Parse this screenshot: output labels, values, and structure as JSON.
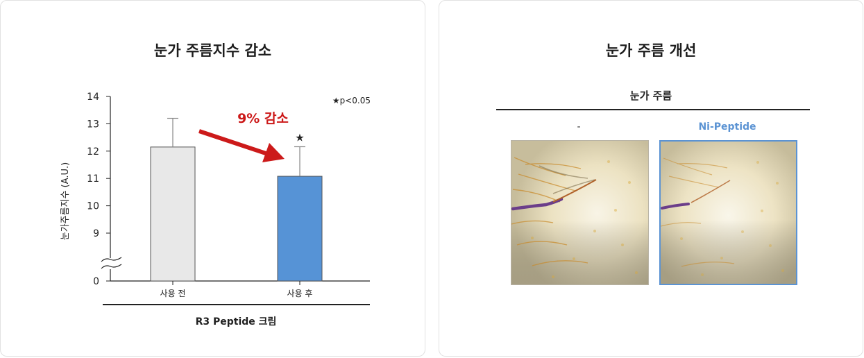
{
  "left_panel": {
    "title": "눈가 주름지수 감소",
    "footer_label": "R3 Peptide 크림"
  },
  "right_panel": {
    "title": "눈가 주름 개선",
    "group_header": "눈가 주름",
    "columns": [
      {
        "label": "-",
        "color": "#333333"
      },
      {
        "label": "Ni-Peptide",
        "color": "#5b93d3"
      }
    ]
  },
  "chart_data": {
    "type": "bar",
    "title": "눈가 주름지수 감소",
    "categories": [
      "사용 전",
      "사용 후"
    ],
    "values": [
      12.15,
      11.08
    ],
    "errors": [
      1.05,
      1.08
    ],
    "bar_colors": [
      "#e8e8e8",
      "#5693d6"
    ],
    "ylabel": "눈가주름지수 (A.U.)",
    "xlabel": "R3 Peptide 크림",
    "ylim": [
      8,
      14
    ],
    "yticks": [
      0,
      9,
      10,
      11,
      12,
      13,
      14
    ],
    "axis_break": true,
    "significance_marker": "★",
    "significance_note": "★p<0.05",
    "annotation": "9% 감소",
    "annotation_color": "#cc1a1a"
  }
}
